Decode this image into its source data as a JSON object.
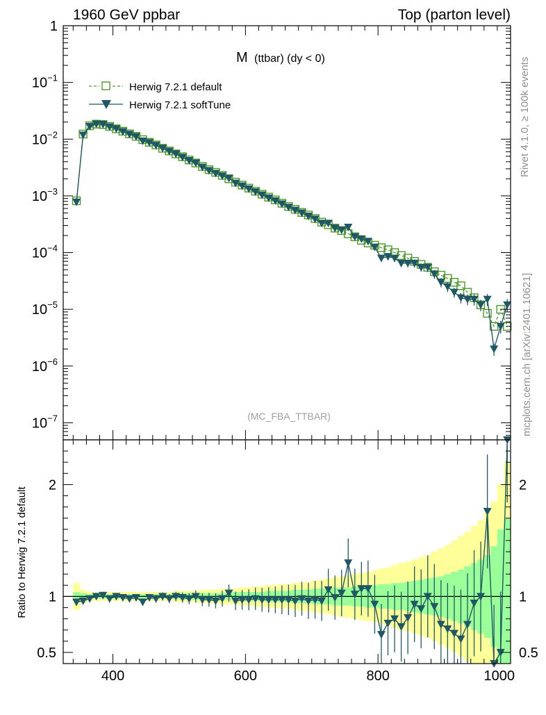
{
  "header": {
    "left": "1960 GeV ppbar",
    "right": "Top (parton level)"
  },
  "side_labels": {
    "rivet": "Rivet 4.1.0, ≥ 100k events",
    "mcplots": "mcplots.cern.ch [arXiv:2401.10621]"
  },
  "colors": {
    "default": "#4c9a2a",
    "softtune": "#1f5764",
    "band_yellow": "#ffff99",
    "band_green": "#99ff99"
  },
  "chart_data": {
    "type": "line",
    "title": "M (ttbar) (dy < 0)",
    "title_main": "M",
    "title_sub": "(ttbar) (dy < 0)",
    "watermark": "(MC_FBA_TTBAR)",
    "xlabel": "",
    "ylabel": "",
    "xlim": [
      325,
      1000
    ],
    "ylim": [
      5e-08,
      1
    ],
    "yscale": "log",
    "x_ticks": [
      "400",
      "600",
      "800",
      "1000"
    ],
    "y_ticks": [
      {
        "base": "1",
        "exp": ""
      },
      {
        "base": "10",
        "exp": "−1"
      },
      {
        "base": "10",
        "exp": "−2"
      },
      {
        "base": "10",
        "exp": "−3"
      },
      {
        "base": "10",
        "exp": "−4"
      },
      {
        "base": "10",
        "exp": "−5"
      },
      {
        "base": "10",
        "exp": "−6"
      },
      {
        "base": "10",
        "exp": "−7"
      }
    ],
    "legend": [
      {
        "name": "Herwig 7.2.1 default",
        "marker": "open-square",
        "line": "dashed"
      },
      {
        "name": "Herwig 7.2.1 softTune",
        "marker": "filled-triangle-down",
        "line": "solid"
      }
    ],
    "series": [
      {
        "name": "Herwig 7.2.1 default",
        "x": [
          345,
          355,
          365,
          375,
          385,
          395,
          405,
          415,
          425,
          435,
          445,
          455,
          465,
          475,
          485,
          495,
          505,
          515,
          525,
          535,
          545,
          555,
          565,
          575,
          585,
          595,
          605,
          615,
          625,
          635,
          645,
          655,
          665,
          675,
          685,
          695,
          705,
          715,
          725,
          735,
          745,
          755,
          765,
          775,
          785,
          795,
          805,
          815,
          825,
          835,
          845,
          855,
          865,
          875,
          885,
          895,
          905,
          915,
          925,
          935,
          945,
          955,
          965,
          975,
          985,
          995
        ],
        "y": [
          0.00082,
          0.0123,
          0.0172,
          0.0184,
          0.0181,
          0.0168,
          0.0152,
          0.0138,
          0.0124,
          0.0112,
          0.0098,
          0.0088,
          0.0079,
          0.0069,
          0.0062,
          0.0055,
          0.0049,
          0.0043,
          0.0038,
          0.0033,
          0.0029,
          0.0026,
          0.0023,
          0.002,
          0.00175,
          0.00155,
          0.00137,
          0.00121,
          0.00107,
          0.00095,
          0.00085,
          0.00074,
          0.00065,
          0.00058,
          0.00051,
          0.00046,
          0.0004,
          0.000345,
          0.00031,
          0.00027,
          0.000245,
          0.000215,
          0.00019,
          0.000165,
          0.000148,
          0.000135,
          0.000122,
          0.000112,
          0.0001,
          8.9e-05,
          8e-05,
          7e-05,
          6.2e-05,
          5.5e-05,
          4.6e-05,
          4e-05,
          3.5e-05,
          3e-05,
          2.6e-05,
          2e-05,
          1.6e-05,
          1.2e-05,
          8.5e-06,
          5e-06,
          1e-05,
          5e-06
        ]
      },
      {
        "name": "Herwig 7.2.1 softTune",
        "x": [
          345,
          355,
          365,
          375,
          385,
          395,
          405,
          415,
          425,
          435,
          445,
          455,
          465,
          475,
          485,
          495,
          505,
          515,
          525,
          535,
          545,
          555,
          565,
          575,
          585,
          595,
          605,
          615,
          625,
          635,
          645,
          655,
          665,
          675,
          685,
          695,
          705,
          715,
          725,
          735,
          745,
          755,
          765,
          775,
          785,
          795,
          805,
          815,
          825,
          835,
          845,
          855,
          865,
          875,
          885,
          895,
          905,
          915,
          925,
          935,
          945,
          955,
          965,
          975,
          985,
          995
        ],
        "y": [
          0.00078,
          0.0118,
          0.0168,
          0.0185,
          0.0182,
          0.0165,
          0.0152,
          0.0136,
          0.0122,
          0.0111,
          0.0093,
          0.0087,
          0.0078,
          0.0069,
          0.0061,
          0.0055,
          0.0048,
          0.0042,
          0.0038,
          0.0032,
          0.0028,
          0.0025,
          0.00225,
          0.00205,
          0.00168,
          0.0015,
          0.00133,
          0.00118,
          0.00104,
          0.00092,
          0.00082,
          0.00072,
          0.00063,
          0.00056,
          0.0005,
          0.00044,
          0.00039,
          0.00033,
          0.00033,
          0.00027,
          0.00025,
          0.00028,
          0.00019,
          0.000175,
          0.000158,
          0.000125,
          8e-05,
          8.5e-05,
          8e-05,
          6.5e-05,
          6.5e-05,
          6.5e-05,
          5.5e-05,
          5.5e-05,
          4.2e-05,
          3e-05,
          2.5e-05,
          2e-05,
          1.6e-05,
          1.5e-05,
          1.5e-05,
          1.2e-05,
          1.5e-05,
          2e-06,
          5e-06,
          1.2e-05
        ]
      }
    ],
    "ratio_panel": {
      "ylabel": "Ratio to Herwig 7.2.1 default",
      "ylim": [
        0.4,
        2.4
      ],
      "y_ticks": [
        "0.5",
        "1",
        "2"
      ],
      "reference_line": 1,
      "softtune_ratio": [
        0.95,
        0.96,
        0.98,
        1.0,
        1.01,
        0.98,
        1.0,
        0.99,
        0.98,
        0.99,
        0.95,
        0.99,
        0.98,
        1.0,
        0.98,
        1.0,
        0.99,
        0.98,
        1.0,
        0.97,
        0.97,
        0.96,
        0.98,
        1.03,
        0.96,
        0.97,
        0.97,
        0.98,
        0.97,
        0.97,
        0.97,
        0.97,
        0.97,
        0.96,
        0.98,
        0.96,
        0.97,
        0.96,
        1.06,
        0.99,
        1.03,
        1.3,
        1.02,
        1.07,
        1.07,
        0.93,
        0.66,
        0.76,
        0.8,
        0.73,
        0.81,
        0.93,
        0.89,
        1.0,
        0.91,
        0.75,
        0.71,
        0.67,
        0.62,
        0.75,
        0.94,
        1.0,
        1.76,
        0.4,
        0.5,
        2.4
      ],
      "band_green_halfwidth": [
        0.04,
        0.03,
        0.02,
        0.02,
        0.02,
        0.02,
        0.02,
        0.02,
        0.02,
        0.02,
        0.02,
        0.02,
        0.02,
        0.02,
        0.02,
        0.02,
        0.03,
        0.03,
        0.03,
        0.03,
        0.03,
        0.03,
        0.03,
        0.03,
        0.04,
        0.04,
        0.04,
        0.04,
        0.04,
        0.05,
        0.05,
        0.05,
        0.05,
        0.06,
        0.06,
        0.06,
        0.07,
        0.07,
        0.07,
        0.08,
        0.08,
        0.08,
        0.09,
        0.09,
        0.1,
        0.1,
        0.11,
        0.11,
        0.12,
        0.12,
        0.13,
        0.14,
        0.15,
        0.16,
        0.17,
        0.18,
        0.2,
        0.22,
        0.24,
        0.27,
        0.3,
        0.33,
        0.37,
        0.45,
        0.6,
        0.7
      ],
      "band_yellow_halfwidth": [
        0.12,
        0.06,
        0.04,
        0.04,
        0.04,
        0.04,
        0.04,
        0.04,
        0.04,
        0.04,
        0.04,
        0.04,
        0.04,
        0.04,
        0.04,
        0.05,
        0.05,
        0.05,
        0.05,
        0.06,
        0.06,
        0.06,
        0.07,
        0.07,
        0.07,
        0.08,
        0.08,
        0.09,
        0.09,
        0.1,
        0.1,
        0.11,
        0.11,
        0.12,
        0.13,
        0.13,
        0.14,
        0.15,
        0.16,
        0.17,
        0.18,
        0.19,
        0.2,
        0.21,
        0.22,
        0.23,
        0.25,
        0.26,
        0.28,
        0.3,
        0.31,
        0.33,
        0.35,
        0.37,
        0.4,
        0.43,
        0.46,
        0.5,
        0.54,
        0.58,
        0.63,
        0.68,
        0.75,
        0.85,
        1.0,
        1.2
      ]
    }
  }
}
